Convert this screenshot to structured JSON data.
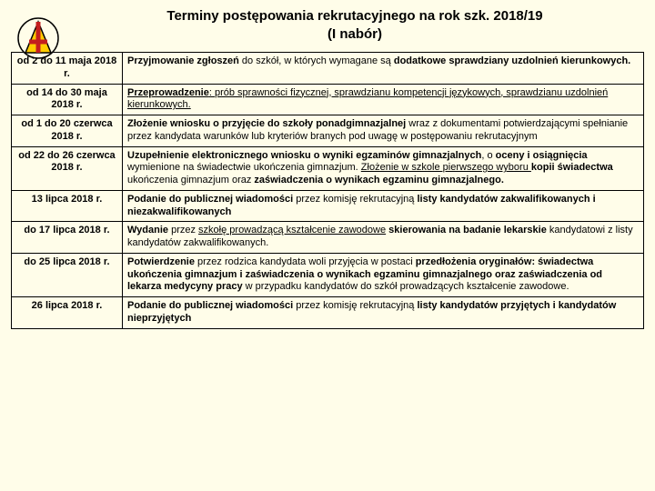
{
  "title_line1": "Terminy postępowania rekrutacyjnego na rok szk. 2018/19",
  "title_line2": "(I nabór)",
  "logo": {
    "stroke": "#000000",
    "fill_yellow": "#ffcc00",
    "fill_red": "#c41e1e"
  },
  "table": {
    "border_color": "#000000",
    "rows": [
      {
        "date": "od 2 do 11 maja 2018 r.",
        "desc_parts": [
          {
            "t": "Przyjmowanie zgłoszeń",
            "b": true
          },
          {
            "t": " do szkół, w których wymagane są "
          },
          {
            "t": "dodatkowe sprawdziany uzdolnień kierunkowych.",
            "b": true
          }
        ]
      },
      {
        "date": "od 14 do 30 maja 2018 r.",
        "desc_parts": [
          {
            "t": "Przeprowadzenie",
            "b": true,
            "u": true
          },
          {
            "t": ": ",
            "u": true
          },
          {
            "t": "prób sprawności fizycznej, sprawdzianu kompetencji językowych, sprawdzianu uzdolnień kierunkowych.",
            "u": true
          }
        ]
      },
      {
        "date": "od 1 do 20 czerwca 2018 r.",
        "desc_parts": [
          {
            "t": "Złożenie wniosku o przyjęcie do szkoły ponadgimnazjalnej ",
            "b": true
          },
          {
            "t": "wraz z dokumentami potwierdzającymi spełnianie przez kandydata warunków lub kryteriów branych pod uwagę w postępowaniu rekrutacyjnym"
          }
        ]
      },
      {
        "date": "od 22 do 26 czerwca 2018 r.",
        "desc_parts": [
          {
            "t": "Uzupełnienie elektronicznego wniosku o wyniki egzaminów gimnazjalnych",
            "b": true
          },
          {
            "t": ",  o "
          },
          {
            "t": "oceny i osiągnięcia",
            "b": true
          },
          {
            "t": " wymienione na świadectwie ukończenia gimnazjum. "
          },
          {
            "t": "Złożenie w szkole pierwszego wyboru ",
            "u": true
          },
          {
            "t": "kopii świadectwa",
            "b": true
          },
          {
            "t": " ukończenia gimnazjum oraz "
          },
          {
            "t": "zaświadczenia o wynikach egzaminu gimnazjalnego.",
            "b": true
          }
        ]
      },
      {
        "date": "13 lipca 2018 r.",
        "desc_parts": [
          {
            "t": "Podanie do publicznej wiadomości",
            "b": true
          },
          {
            "t": " przez komisję rekrutacyjną "
          },
          {
            "t": "listy kandydatów zakwalifikowanych i niezakwalifikowanych",
            "b": true
          }
        ]
      },
      {
        "date": "do 17 lipca 2018 r.",
        "desc_parts": [
          {
            "t": "Wydanie",
            "b": true
          },
          {
            "t": " przez "
          },
          {
            "t": "szkołę prowadzącą kształcenie zawodowe",
            "u": true
          },
          {
            "t": " "
          },
          {
            "t": "skierowania na badanie lekarskie",
            "b": true
          },
          {
            "t": " kandydatowi z listy kandydatów zakwalifikowanych."
          }
        ]
      },
      {
        "date": "do 25 lipca 2018 r.",
        "desc_parts": [
          {
            "t": "Potwierdzenie",
            "b": true
          },
          {
            "t": " przez rodzica kandydata woli przyjęcia w postaci "
          },
          {
            "t": "przedłożenia oryginałów: świadectwa ukończenia gimnazjum i zaświadczenia o wynikach egzaminu gimnazjalnego oraz zaświadczenia od lekarza medycyny pracy",
            "b": true
          },
          {
            "t": "  w przypadku kandydatów do szkół prowadzących kształcenie zawodowe."
          }
        ]
      },
      {
        "date": "26 lipca 2018 r.",
        "desc_parts": [
          {
            "t": "Podanie do publicznej wiadomości",
            "b": true
          },
          {
            "t": " przez komisję rekrutacyjną "
          },
          {
            "t": "listy kandydatów przyjętych i kandydatów nieprzyjętych",
            "b": true
          }
        ]
      }
    ]
  }
}
